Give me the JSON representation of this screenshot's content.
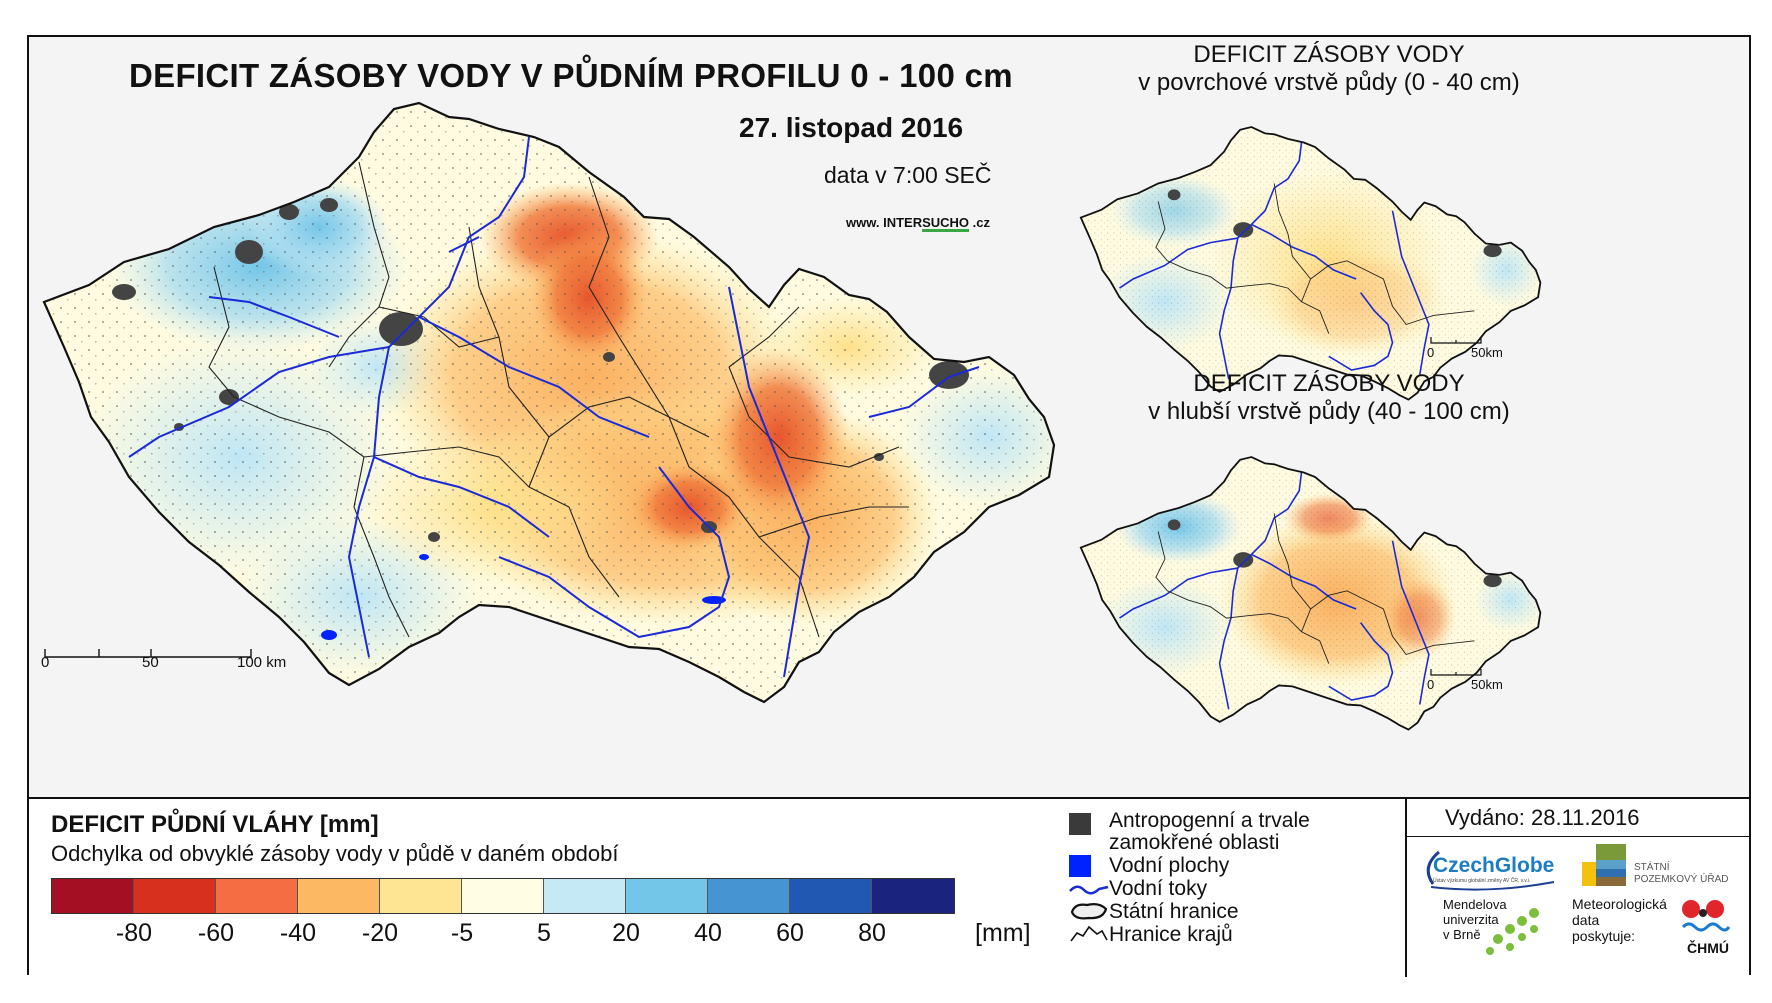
{
  "main_map": {
    "title": "DEFICIT ZÁSOBY VODY V PŮDNÍM PROFILU 0 - 100 cm",
    "date": "27. listopad 2016",
    "data_time": "data v 7:00 SEČ",
    "website_prefix": "www. INTER",
    "website_highlight": "SUCHO",
    "website_suffix": " .cz",
    "scalebar": {
      "labels": [
        "0",
        "50",
        "100 km"
      ]
    }
  },
  "inset_top": {
    "title_line1": "DEFICIT ZÁSOBY VODY",
    "title_line2": "v povrchové vrstvě půdy (0 - 40 cm)",
    "scalebar": {
      "labels": [
        "0",
        "50km"
      ]
    }
  },
  "inset_bottom": {
    "title_line1": "DEFICIT ZÁSOBY VODY",
    "title_line2": "v hlubší vrstvě půdy (40 - 100 cm)",
    "scalebar": {
      "labels": [
        "0",
        "50km"
      ]
    }
  },
  "legend": {
    "title": "DEFICIT PŮDNÍ VLÁHY [mm]",
    "subtitle": "Odchylka od obvyklé zásoby vody v půdě v daném období",
    "colors": [
      "#a50f24",
      "#d7301f",
      "#f46d43",
      "#fdb863",
      "#fee593",
      "#fffde3",
      "#c6e9f6",
      "#74c6e8",
      "#4694d2",
      "#2158b2",
      "#1a237e"
    ],
    "ticks": [
      "-80",
      "-60",
      "-40",
      "-20",
      "-5",
      "5",
      "20",
      "40",
      "60",
      "80"
    ],
    "unit": "[mm]",
    "symbols": [
      {
        "icon": "dark-square-icon",
        "label_line1": "Antropogenní a trvale",
        "label_line2": "zamokřené oblasti",
        "color": "#3a3a3a"
      },
      {
        "icon": "blue-square-icon",
        "label": "Vodní plochy",
        "color": "#0022ff"
      },
      {
        "icon": "river-line-icon",
        "label": "Vodní toky",
        "color": "#1a2ad6"
      },
      {
        "icon": "state-border-icon",
        "label": "Státní hranice"
      },
      {
        "icon": "region-border-icon",
        "label": "Hranice krajů"
      }
    ]
  },
  "credits": {
    "issued": "Vydáno: 28.11.2016",
    "czechglobe": "CzechGlobe",
    "czechglobe_sub": "Ústav výzkumu globální změny AV ČR, v.v.i.",
    "spu_line1": "STÁTNÍ",
    "spu_line2": "POZEMKOVÝ ÚŘAD",
    "mendel_line1": "Mendelova",
    "mendel_line2": "univerzita",
    "mendel_line3": "v Brně",
    "meteo_line1": "Meteorologická",
    "meteo_line2": "data",
    "meteo_line3": "poskytuje:",
    "chmu": "ČHMÚ"
  }
}
